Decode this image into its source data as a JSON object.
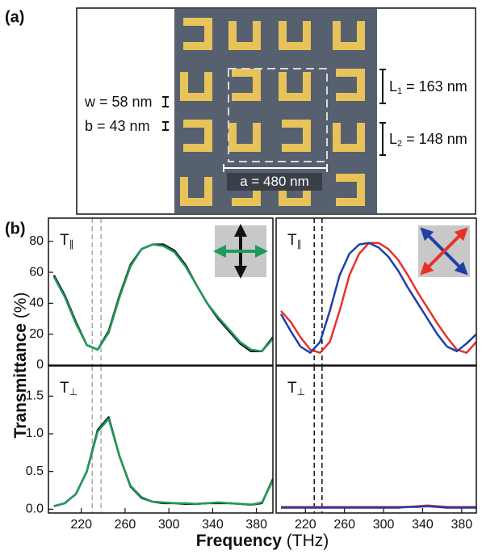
{
  "panel_a": {
    "label": "(a)",
    "w": {
      "symbol": "w",
      "text": " = 58 nm"
    },
    "b": {
      "symbol": "b",
      "text": " = 43 nm"
    },
    "L1": {
      "symbol": "L",
      "sub": "1",
      "text": " = 163 nm"
    },
    "L2": {
      "symbol": "L",
      "sub": "2",
      "text": " = 148 nm"
    },
    "a": {
      "symbol": "a",
      "text": " = 480 nm"
    }
  },
  "figure_b": {
    "label": "(b)",
    "ylabel": "Transmittance",
    "yunit": " (%)",
    "xlabel": "Frequency",
    "xunit": " (THz)"
  },
  "chart_data": [
    {
      "type": "line",
      "label": "T",
      "label_sub": "∥",
      "x": [
        195,
        205,
        215,
        225,
        235,
        245,
        255,
        265,
        275,
        285,
        295,
        305,
        315,
        325,
        335,
        345,
        355,
        365,
        375,
        385,
        395
      ],
      "xlim": [
        190,
        395
      ],
      "ylim": [
        0,
        95
      ],
      "yticks": [
        0,
        20,
        40,
        60,
        80
      ],
      "vlines": [
        {
          "x": 230,
          "color": "#aaaaaa"
        },
        {
          "x": 238,
          "color": "#aaaaaa"
        }
      ],
      "series": [
        {
          "color": "#111111",
          "values": [
            58,
            45,
            28,
            13,
            10,
            22,
            45,
            65,
            75,
            78,
            78,
            74,
            65,
            52,
            40,
            30,
            22,
            14,
            9,
            9,
            18
          ]
        },
        {
          "color": "#1f9a5a",
          "values": [
            57,
            44,
            27,
            13,
            10,
            21,
            44,
            64,
            75,
            78,
            77,
            73,
            64,
            52,
            40,
            31,
            23,
            15,
            10,
            9,
            17
          ]
        }
      ]
    },
    {
      "type": "line",
      "label": "T",
      "label_sub": "∥",
      "x": [
        195,
        205,
        215,
        225,
        235,
        245,
        255,
        265,
        275,
        285,
        295,
        305,
        315,
        325,
        335,
        345,
        355,
        365,
        375,
        385,
        395
      ],
      "xlim": [
        190,
        395
      ],
      "ylim": [
        0,
        95
      ],
      "vlines": [
        {
          "x": 229,
          "color": "#111111"
        },
        {
          "x": 237,
          "color": "#111111"
        }
      ],
      "series": [
        {
          "color": "#e8312a",
          "values": [
            35,
            28,
            18,
            10,
            8,
            15,
            35,
            58,
            72,
            79,
            79,
            75,
            68,
            58,
            47,
            37,
            27,
            18,
            10,
            8,
            15
          ]
        },
        {
          "color": "#1f3fa8",
          "values": [
            33,
            22,
            12,
            8,
            15,
            35,
            58,
            72,
            78,
            79,
            76,
            70,
            61,
            50,
            40,
            30,
            20,
            12,
            9,
            14,
            20
          ]
        }
      ]
    },
    {
      "type": "line",
      "label": "T",
      "label_sub": "⊥",
      "x": [
        195,
        205,
        215,
        225,
        235,
        245,
        255,
        265,
        275,
        285,
        295,
        305,
        315,
        325,
        335,
        345,
        355,
        365,
        375,
        385,
        395
      ],
      "xlim": [
        190,
        395
      ],
      "ylim": [
        -0.05,
        1.9
      ],
      "xticks": [
        220,
        260,
        300,
        340,
        380
      ],
      "yticks": [
        {
          "value": 0,
          "label": "0.0"
        },
        0.5,
        {
          "value": 1,
          "label": "1.0"
        },
        1.5
      ],
      "vlines": [
        {
          "x": 230,
          "color": "#aaaaaa"
        },
        {
          "x": 238,
          "color": "#aaaaaa"
        }
      ],
      "series": [
        {
          "color": "#111111",
          "values": [
            0.04,
            0.08,
            0.2,
            0.5,
            1.05,
            1.22,
            0.7,
            0.3,
            0.15,
            0.1,
            0.08,
            0.08,
            0.07,
            0.07,
            0.08,
            0.08,
            0.08,
            0.07,
            0.06,
            0.08,
            0.4
          ]
        },
        {
          "color": "#1f9a5a",
          "values": [
            0.04,
            0.08,
            0.2,
            0.5,
            1.03,
            1.2,
            0.7,
            0.31,
            0.16,
            0.1,
            0.09,
            0.08,
            0.08,
            0.07,
            0.08,
            0.09,
            0.08,
            0.07,
            0.06,
            0.09,
            0.38
          ]
        }
      ]
    },
    {
      "type": "line",
      "label": "T",
      "label_sub": "⊥",
      "x": [
        195,
        205,
        215,
        225,
        235,
        245,
        255,
        265,
        275,
        285,
        295,
        305,
        315,
        325,
        335,
        345,
        355,
        365,
        375,
        385,
        395
      ],
      "xlim": [
        190,
        395
      ],
      "ylim": [
        -0.05,
        1.9
      ],
      "xticks": [
        220,
        260,
        300,
        340,
        380
      ],
      "vlines": [
        {
          "x": 229,
          "color": "#111111"
        },
        {
          "x": 237,
          "color": "#111111"
        }
      ],
      "series": [
        {
          "color": "#e8312a",
          "values": [
            0.03,
            0.03,
            0.03,
            0.03,
            0.03,
            0.03,
            0.03,
            0.03,
            0.03,
            0.03,
            0.03,
            0.03,
            0.03,
            0.03,
            0.04,
            0.05,
            0.04,
            0.03,
            0.03,
            0.03,
            0.03
          ]
        },
        {
          "color": "#1f3fa8",
          "values": [
            0.02,
            0.02,
            0.02,
            0.02,
            0.02,
            0.02,
            0.02,
            0.02,
            0.02,
            0.02,
            0.02,
            0.02,
            0.02,
            0.03,
            0.03,
            0.04,
            0.03,
            0.02,
            0.02,
            0.02,
            0.02
          ]
        }
      ]
    }
  ]
}
